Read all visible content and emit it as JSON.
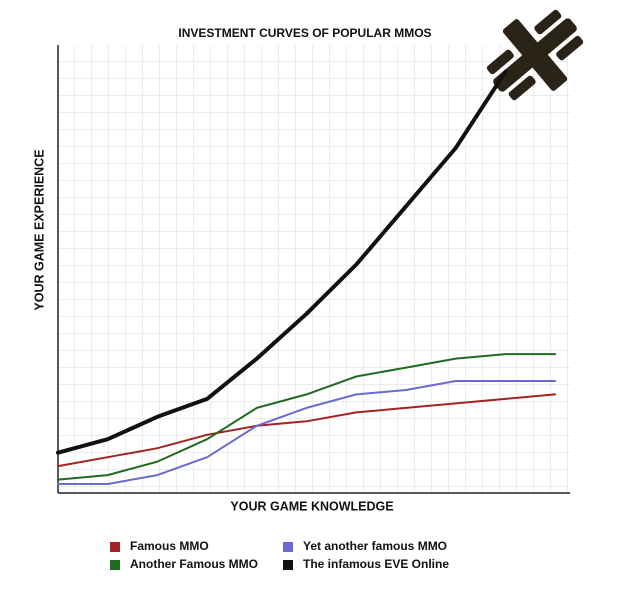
{
  "chart_data": {
    "type": "line",
    "title": "INVESTMENT CURVES OF POPULAR MMOS",
    "x_label": "YOUR GAME KNOWLEDGE",
    "y_label": "YOUR GAME EXPERIENCE",
    "x": [
      0,
      10,
      20,
      30,
      40,
      50,
      60,
      70,
      80,
      90,
      100
    ],
    "xlim": [
      0,
      103
    ],
    "ylim": [
      0,
      100
    ],
    "series": [
      {
        "name": "Famous MMO",
        "color": "#a52222",
        "values": [
          6,
          8,
          10,
          13,
          15,
          16,
          18,
          19,
          20,
          21,
          22
        ]
      },
      {
        "name": "Another Famous MMO",
        "color": "#1f6b1f",
        "values": [
          3,
          4,
          7,
          12,
          19,
          22,
          26,
          28,
          30,
          31,
          31
        ]
      },
      {
        "name": "Yet another famous MMO",
        "color": "#6a6ad0",
        "values": [
          2,
          2,
          4,
          8,
          15,
          19,
          22,
          23,
          25,
          25,
          25
        ]
      },
      {
        "name": "The infamous EVE Online",
        "color": "#111111",
        "values": [
          9,
          12,
          17,
          21,
          30,
          40,
          51,
          64,
          77,
          94,
          null
        ]
      }
    ]
  }
}
